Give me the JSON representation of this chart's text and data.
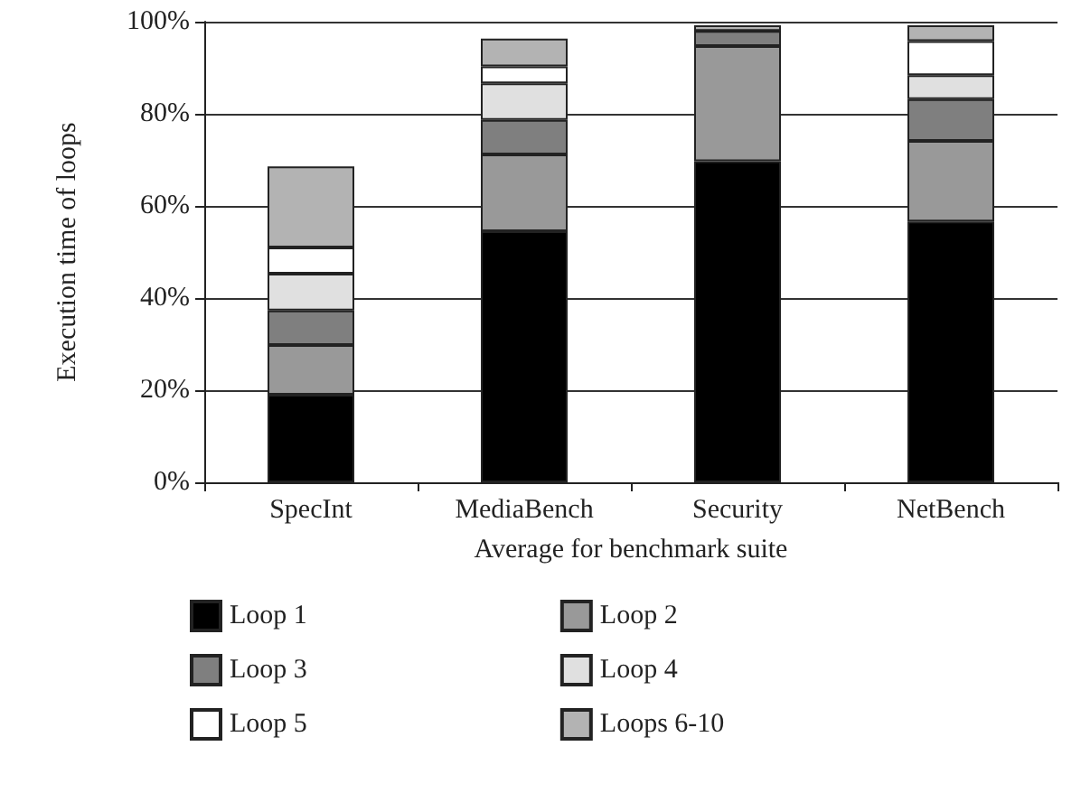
{
  "chart_data": {
    "type": "bar",
    "stacked": true,
    "xlabel": "Average for benchmark suite",
    "ylabel": "Execution time of loops",
    "categories": [
      "SpecInt",
      "MediaBench",
      "Security",
      "NetBench"
    ],
    "series": [
      {
        "name": "Loop 1",
        "color": "#000000",
        "values": [
          19,
          54.5,
          69.7,
          56.6
        ]
      },
      {
        "name": "Loop 2",
        "color": "#999999",
        "values": [
          10.8,
          16.7,
          25,
          17.5
        ]
      },
      {
        "name": "Loop 3",
        "color": "#7f7f7f",
        "values": [
          7.5,
          7.5,
          3.3,
          9.1
        ]
      },
      {
        "name": "Loop 4",
        "color": "#e0e0e0",
        "values": [
          8,
          7.9,
          0,
          5.2
        ]
      },
      {
        "name": "Loop 5",
        "color": "#ffffff",
        "values": [
          5.7,
          3.7,
          0,
          7.4
        ]
      },
      {
        "name": "Loops 6-10",
        "color": "#b3b3b3",
        "values": [
          17.6,
          6,
          1.2,
          3.4
        ]
      }
    ],
    "ylim": [
      0,
      100
    ],
    "yticks": [
      {
        "value": 0,
        "label": "0%"
      },
      {
        "value": 20,
        "label": "20%"
      },
      {
        "value": 40,
        "label": "40%"
      },
      {
        "value": 60,
        "label": "60%"
      },
      {
        "value": 80,
        "label": "80%"
      },
      {
        "value": 100,
        "label": "100%"
      }
    ],
    "grid": "y",
    "legend": "bottom"
  }
}
